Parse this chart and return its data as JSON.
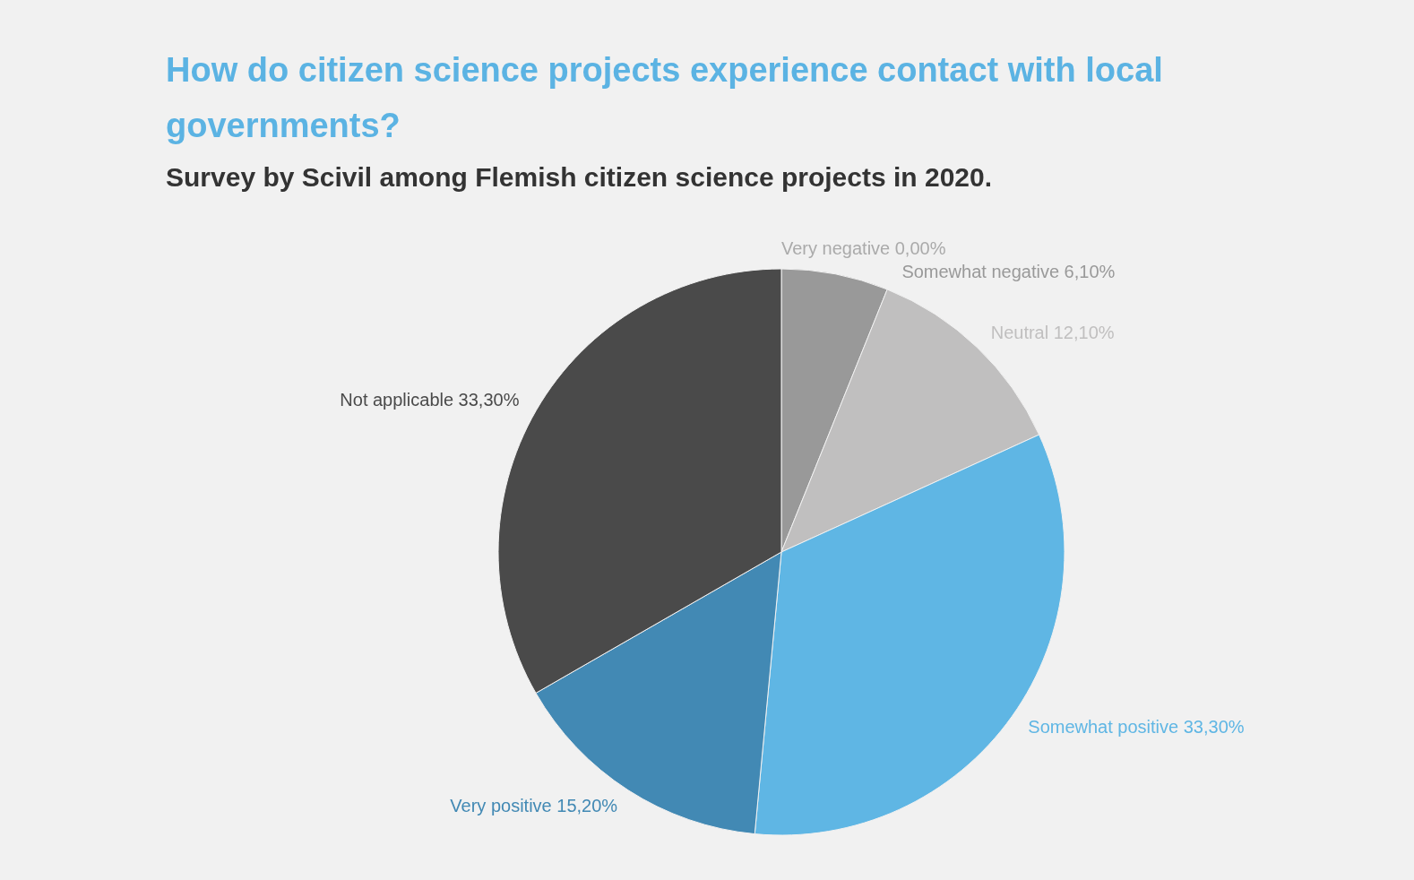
{
  "chart_data": {
    "type": "pie",
    "title": "How do citizen science projects experience contact with local governments?",
    "subtitle": "Survey by Scivil among Flemish citizen science projects in 2020.",
    "categories": [
      "Very negative",
      "Somewhat negative",
      "Neutral",
      "Somewhat positive",
      "Very positive",
      "Not applicable"
    ],
    "values": [
      0.0,
      6.1,
      12.1,
      33.3,
      15.2,
      33.3
    ],
    "value_labels": [
      "0,00%",
      "6,10%",
      "12,10%",
      "33,30%",
      "15,20%",
      "33,30%"
    ],
    "colors": [
      "#aaaaaa",
      "#999999",
      "#c0bfbf",
      "#5fb6e4",
      "#4289b4",
      "#4a4a4a"
    ]
  }
}
